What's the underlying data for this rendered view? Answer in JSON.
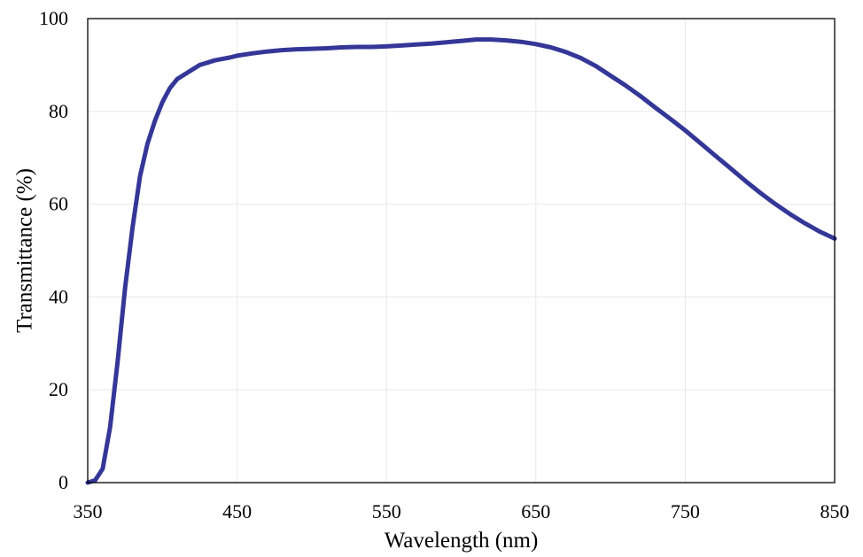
{
  "chart_data": {
    "type": "line",
    "xlabel": "Wavelength (nm)",
    "ylabel": "Transmittance (%)",
    "xlim": [
      350,
      850
    ],
    "ylim": [
      0,
      100
    ],
    "x_ticks": [
      350,
      450,
      550,
      650,
      750,
      850
    ],
    "y_ticks": [
      0,
      20,
      40,
      60,
      80,
      100
    ],
    "grid": true,
    "legend": "none",
    "colors": {
      "line": "#343797",
      "grid": "#e8e8e8",
      "frame": "#000000"
    },
    "series": [
      {
        "x": [
          350,
          355,
          360,
          365,
          370,
          375,
          380,
          385,
          390,
          395,
          400,
          405,
          410,
          415,
          420,
          425,
          430,
          435,
          440,
          445,
          450,
          460,
          470,
          480,
          490,
          500,
          510,
          520,
          530,
          540,
          550,
          560,
          570,
          580,
          590,
          600,
          610,
          620,
          630,
          640,
          650,
          660,
          670,
          680,
          690,
          700,
          710,
          720,
          730,
          740,
          750,
          760,
          770,
          780,
          790,
          800,
          810,
          820,
          830,
          840,
          850
        ],
        "y": [
          0,
          0.5,
          3,
          12,
          26,
          42,
          55,
          66,
          73,
          78,
          82,
          85,
          87,
          88,
          89,
          90,
          90.5,
          91,
          91.3,
          91.6,
          92,
          92.5,
          92.9,
          93.2,
          93.4,
          93.5,
          93.6,
          93.8,
          93.9,
          93.9,
          94,
          94.2,
          94.4,
          94.6,
          94.9,
          95.2,
          95.5,
          95.5,
          95.3,
          95,
          94.5,
          93.8,
          92.8,
          91.5,
          89.8,
          87.7,
          85.6,
          83.3,
          80.8,
          78.4,
          75.9,
          73.2,
          70.5,
          67.8,
          65.1,
          62.5,
          60.1,
          57.9,
          55.9,
          54.1,
          52.6
        ]
      }
    ]
  }
}
